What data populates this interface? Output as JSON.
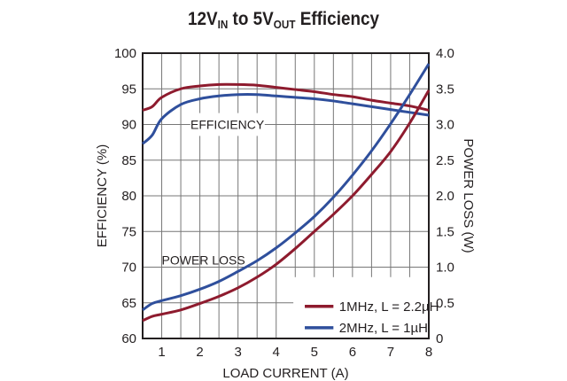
{
  "chart_data": {
    "type": "line",
    "title": {
      "part1": "12V",
      "sub1": "IN",
      "part2": " to 5V",
      "sub2": "OUT",
      "part3": " Efficiency"
    },
    "xlabel": "LOAD CURRENT (A)",
    "ylabel": "EFFICIENCY (%)",
    "y2label": "POWER LOSS (W)",
    "xlim": [
      0.5,
      8
    ],
    "ylim": [
      60,
      100
    ],
    "y2lim": [
      0,
      4
    ],
    "xticks": [
      "1",
      "2",
      "3",
      "4",
      "5",
      "6",
      "7",
      "8"
    ],
    "yticks": [
      "60",
      "65",
      "70",
      "75",
      "80",
      "85",
      "90",
      "95",
      "100"
    ],
    "y2ticks": [
      "0",
      "0.5",
      "1.0",
      "1.5",
      "2.0",
      "2.5",
      "3.0",
      "3.5",
      "4.0"
    ],
    "grid": true,
    "annotations": {
      "efficiency": "EFFICIENCY",
      "power_loss": "POWER LOSS"
    },
    "legend_position": "bottom-right",
    "x": [
      0.5,
      0.75,
      1,
      1.5,
      2,
      2.5,
      3,
      3.5,
      4,
      4.5,
      5,
      5.5,
      6,
      6.5,
      7,
      7.5,
      8
    ],
    "series": [
      {
        "name": "1MHz, L = 2.2µH",
        "color": "#8e1b2e",
        "axis": "left",
        "kind": "efficiency",
        "values": [
          92,
          92.5,
          93.8,
          95,
          95.4,
          95.6,
          95.6,
          95.5,
          95.2,
          94.9,
          94.6,
          94.2,
          93.9,
          93.4,
          93,
          92.6,
          92
        ]
      },
      {
        "name": "2MHz, L = 1µH",
        "color": "#2f4f9c",
        "axis": "left",
        "kind": "efficiency",
        "values": [
          87.3,
          88.5,
          90.8,
          92.8,
          93.6,
          94,
          94.2,
          94.2,
          94,
          93.8,
          93.6,
          93.3,
          92.9,
          92.5,
          92.1,
          91.7,
          91.3
        ]
      },
      {
        "name": "1MHz, L = 2.2µH",
        "color": "#8e1b2e",
        "axis": "right",
        "kind": "power_loss",
        "values": [
          0.25,
          0.31,
          0.34,
          0.4,
          0.49,
          0.59,
          0.71,
          0.86,
          1.04,
          1.26,
          1.5,
          1.74,
          2.0,
          2.3,
          2.62,
          3.02,
          3.48
        ]
      },
      {
        "name": "2MHz, L = 1µH",
        "color": "#2f4f9c",
        "axis": "right",
        "kind": "power_loss",
        "values": [
          0.4,
          0.49,
          0.53,
          0.6,
          0.69,
          0.8,
          0.94,
          1.09,
          1.27,
          1.48,
          1.71,
          1.98,
          2.29,
          2.63,
          3.01,
          3.42,
          3.85
        ]
      }
    ],
    "legend": [
      "1MHz, L = 2.2µH",
      "2MHz, L = 1µH"
    ]
  }
}
